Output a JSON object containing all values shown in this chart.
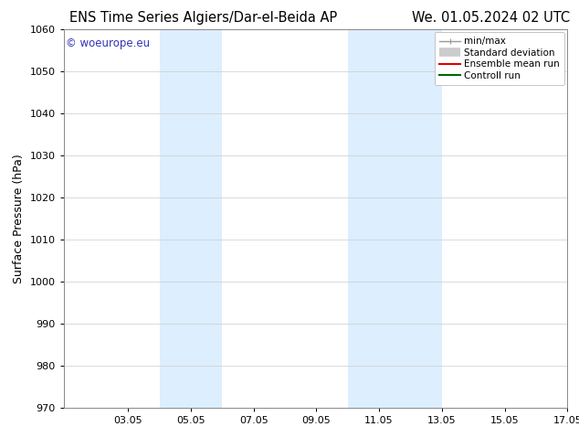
{
  "title_left": "ENS Time Series Algiers/Dar-el-Beida AP",
  "title_right": "We. 01.05.2024 02 UTC",
  "ylabel": "Surface Pressure (hPa)",
  "ylim": [
    970,
    1060
  ],
  "yticks": [
    970,
    980,
    990,
    1000,
    1010,
    1020,
    1030,
    1040,
    1050,
    1060
  ],
  "xlim_start": 1.0,
  "xlim_end": 17.05,
  "xtick_labels": [
    "03.05",
    "05.05",
    "07.05",
    "09.05",
    "11.05",
    "13.05",
    "15.05",
    "17.05"
  ],
  "xtick_positions": [
    3.05,
    5.05,
    7.05,
    9.05,
    11.05,
    13.05,
    15.05,
    17.05
  ],
  "shaded_bands": [
    {
      "xmin": 4.05,
      "xmax": 6.05
    },
    {
      "xmin": 10.05,
      "xmax": 13.05
    }
  ],
  "band_color": "#ddeeff",
  "watermark_text": "© woeurope.eu",
  "watermark_color": "#3333bb",
  "legend_items": [
    {
      "label": "min/max",
      "color": "#999999",
      "lw": 1.0,
      "style": "minmax"
    },
    {
      "label": "Standard deviation",
      "color": "#cccccc",
      "lw": 7,
      "style": "band"
    },
    {
      "label": "Ensemble mean run",
      "color": "#dd0000",
      "lw": 1.5,
      "style": "line"
    },
    {
      "label": "Controll run",
      "color": "#006600",
      "lw": 1.5,
      "style": "line"
    }
  ],
  "background_color": "#ffffff",
  "grid_color": "#cccccc",
  "spine_color": "#888888",
  "title_fontsize": 10.5,
  "ylabel_fontsize": 9,
  "tick_fontsize": 8,
  "legend_fontsize": 7.5,
  "watermark_fontsize": 8.5
}
